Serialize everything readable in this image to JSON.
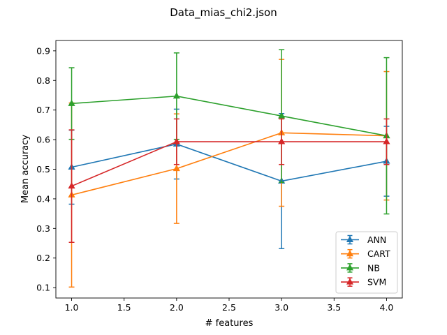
{
  "chart_data": {
    "type": "line",
    "title": "Data_mias_chi2.json",
    "xlabel": "# features",
    "ylabel": "Mean accuracy",
    "x": [
      1.0,
      2.0,
      3.0,
      4.0
    ],
    "xlim": [
      0.85,
      4.15
    ],
    "ylim": [
      0.065,
      0.935
    ],
    "xticks": [
      1.0,
      1.5,
      2.0,
      2.5,
      3.0,
      3.5,
      4.0
    ],
    "xtick_labels": [
      "1.0",
      "1.5",
      "2.0",
      "2.5",
      "3.0",
      "3.5",
      "4.0"
    ],
    "yticks": [
      0.1,
      0.2,
      0.3,
      0.4,
      0.5,
      0.6,
      0.7,
      0.8,
      0.9
    ],
    "ytick_labels": [
      "0.1",
      "0.2",
      "0.3",
      "0.4",
      "0.5",
      "0.6",
      "0.7",
      "0.8",
      "0.9"
    ],
    "grid": false,
    "legend_position": "lower-right",
    "series": [
      {
        "name": "ANN",
        "color": "#1f77b4",
        "values": [
          0.507,
          0.585,
          0.46,
          0.527
        ],
        "errors": [
          0.125,
          0.118,
          0.228,
          0.118
        ]
      },
      {
        "name": "CART",
        "color": "#ff7f0e",
        "values": [
          0.413,
          0.502,
          0.623,
          0.613
        ],
        "errors": [
          0.311,
          0.185,
          0.248,
          0.217
        ]
      },
      {
        "name": "NB",
        "color": "#2ca02c",
        "values": [
          0.722,
          0.747,
          0.68,
          0.613
        ],
        "errors": [
          0.121,
          0.146,
          0.224,
          0.264
        ]
      },
      {
        "name": "SVM",
        "color": "#d62728",
        "values": [
          0.443,
          0.593,
          0.593,
          0.593
        ],
        "errors": [
          0.19,
          0.077,
          0.077,
          0.077
        ]
      }
    ]
  }
}
